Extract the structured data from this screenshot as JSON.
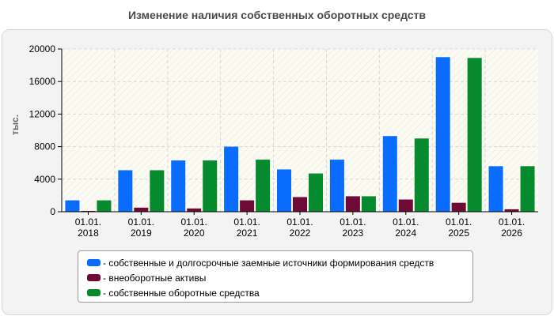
{
  "chart_data": {
    "type": "bar",
    "title": "Изменение наличия собственных оборотных средств",
    "ylabel": "тыс.",
    "xlabel": "",
    "ylim": [
      0,
      20000
    ],
    "yticks": [
      0,
      4000,
      8000,
      12000,
      16000,
      20000
    ],
    "grid": true,
    "legend_position": "bottom",
    "categories": [
      [
        "01.01.",
        "2018"
      ],
      [
        "01.01.",
        "2019"
      ],
      [
        "01.01.",
        "2020"
      ],
      [
        "01.01.",
        "2021"
      ],
      [
        "01.01.",
        "2022"
      ],
      [
        "01.01.",
        "2023"
      ],
      [
        "01.01.",
        "2024"
      ],
      [
        "01.01.",
        "2025"
      ],
      [
        "01.01.",
        "2026"
      ]
    ],
    "series": [
      {
        "name": "- собственные и долгосрочные заемные источники формирования средств",
        "color": "#0a6cff",
        "values": [
          1400,
          5100,
          6300,
          8000,
          5200,
          6400,
          9300,
          19000,
          5600
        ]
      },
      {
        "name": "- внеоборотные активы",
        "color": "#6e0a35",
        "values": [
          100,
          500,
          400,
          1400,
          1800,
          1900,
          1500,
          1100,
          300
        ]
      },
      {
        "name": "- собственные оборотные средства",
        "color": "#058a2e",
        "values": [
          1400,
          5100,
          6300,
          6400,
          4700,
          1900,
          9000,
          18900,
          5600
        ]
      }
    ]
  }
}
